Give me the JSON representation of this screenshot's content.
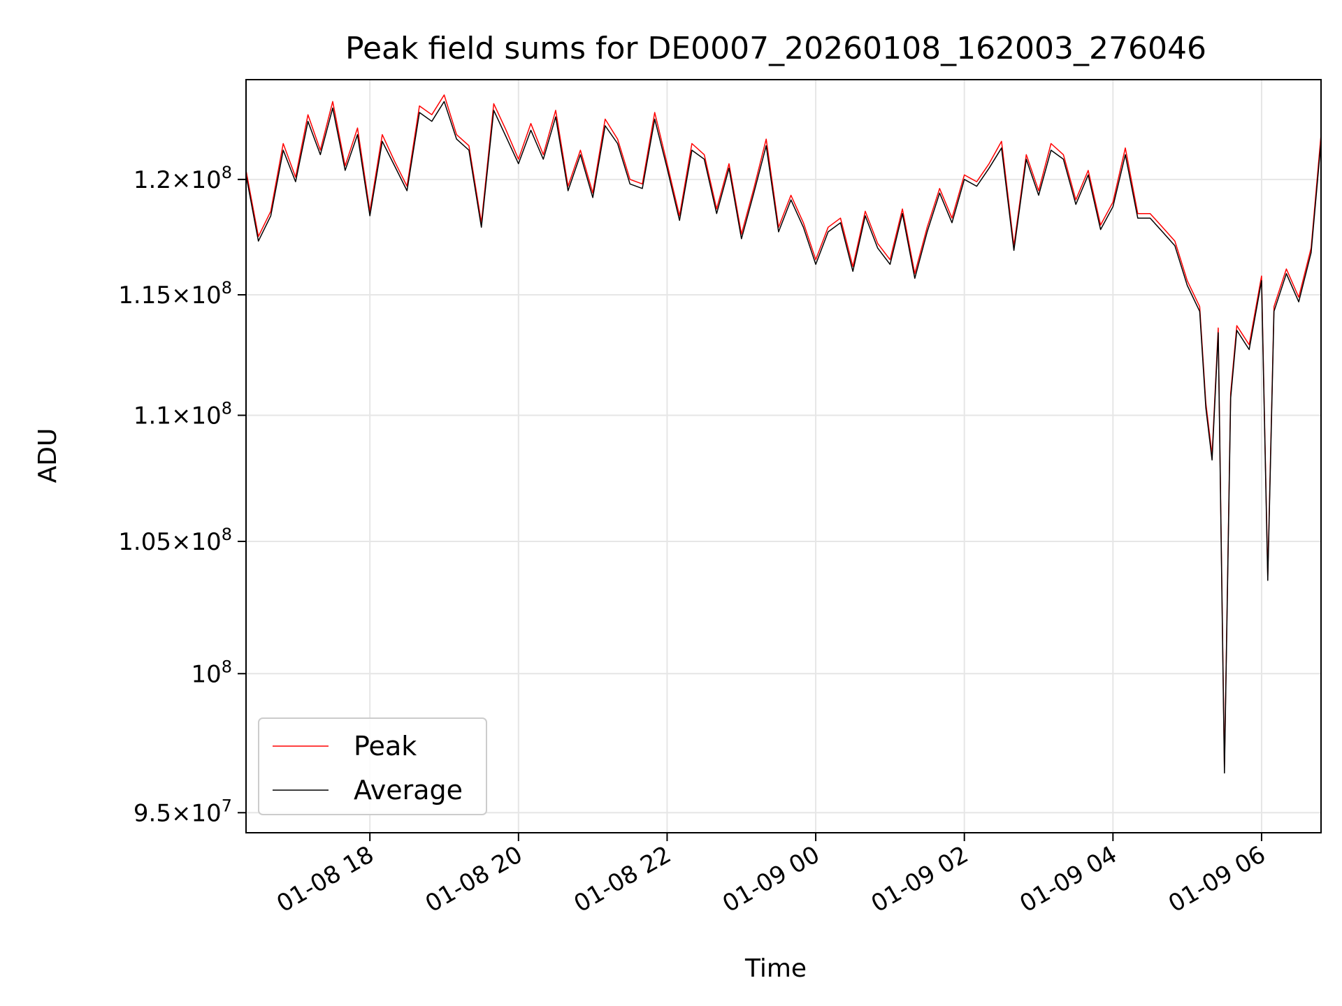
{
  "chart_data": {
    "type": "line",
    "title": "Peak field sums for DE0007_20260108_162003_276046",
    "xlabel": "Time",
    "ylabel": "ADU",
    "yscale": "log",
    "grid": true,
    "legend_placement": "lower left",
    "xlim": [
      "2026-01-08 16:20",
      "2026-01-09 06:48"
    ],
    "ylim": [
      94300000,
      124500000
    ],
    "x_ticks": [
      {
        "value": "2026-01-08 18:00",
        "label": "01-08 18"
      },
      {
        "value": "2026-01-08 20:00",
        "label": "01-08 20"
      },
      {
        "value": "2026-01-08 22:00",
        "label": "01-08 22"
      },
      {
        "value": "2026-01-09 00:00",
        "label": "01-09 00"
      },
      {
        "value": "2026-01-09 02:00",
        "label": "01-09 02"
      },
      {
        "value": "2026-01-09 04:00",
        "label": "01-09 04"
      },
      {
        "value": "2026-01-09 06:00",
        "label": "01-09 06"
      }
    ],
    "y_ticks": [
      {
        "value": 95000000,
        "mantissa": "9.5",
        "exponent": "7"
      },
      {
        "value": 100000000,
        "mantissa": "",
        "exponent": "8"
      },
      {
        "value": 105000000,
        "mantissa": "1.05",
        "exponent": "8"
      },
      {
        "value": 110000000,
        "mantissa": "1.1",
        "exponent": "8"
      },
      {
        "value": 115000000,
        "mantissa": "1.15",
        "exponent": "8"
      },
      {
        "value": 120000000,
        "mantissa": "1.2",
        "exponent": "8"
      }
    ],
    "series": [
      {
        "name": "Peak",
        "color": "#ff0000",
        "x": [
          "2026-01-08 16:20",
          "2026-01-08 16:30",
          "2026-01-08 16:40",
          "2026-01-08 16:50",
          "2026-01-08 17:00",
          "2026-01-08 17:10",
          "2026-01-08 17:20",
          "2026-01-08 17:30",
          "2026-01-08 17:40",
          "2026-01-08 17:50",
          "2026-01-08 18:00",
          "2026-01-08 18:10",
          "2026-01-08 18:20",
          "2026-01-08 18:30",
          "2026-01-08 18:40",
          "2026-01-08 18:50",
          "2026-01-08 19:00",
          "2026-01-08 19:10",
          "2026-01-08 19:20",
          "2026-01-08 19:30",
          "2026-01-08 19:40",
          "2026-01-08 19:50",
          "2026-01-08 20:00",
          "2026-01-08 20:10",
          "2026-01-08 20:20",
          "2026-01-08 20:30",
          "2026-01-08 20:40",
          "2026-01-08 20:50",
          "2026-01-08 21:00",
          "2026-01-08 21:10",
          "2026-01-08 21:20",
          "2026-01-08 21:30",
          "2026-01-08 21:40",
          "2026-01-08 21:50",
          "2026-01-08 22:00",
          "2026-01-08 22:10",
          "2026-01-08 22:20",
          "2026-01-08 22:30",
          "2026-01-08 22:40",
          "2026-01-08 22:50",
          "2026-01-08 23:00",
          "2026-01-08 23:10",
          "2026-01-08 23:20",
          "2026-01-08 23:30",
          "2026-01-08 23:40",
          "2026-01-08 23:50",
          "2026-01-09 00:00",
          "2026-01-09 00:10",
          "2026-01-09 00:20",
          "2026-01-09 00:30",
          "2026-01-09 00:40",
          "2026-01-09 00:50",
          "2026-01-09 01:00",
          "2026-01-09 01:10",
          "2026-01-09 01:20",
          "2026-01-09 01:30",
          "2026-01-09 01:40",
          "2026-01-09 01:50",
          "2026-01-09 02:00",
          "2026-01-09 02:10",
          "2026-01-09 02:20",
          "2026-01-09 02:30",
          "2026-01-09 02:40",
          "2026-01-09 02:50",
          "2026-01-09 03:00",
          "2026-01-09 03:10",
          "2026-01-09 03:20",
          "2026-01-09 03:30",
          "2026-01-09 03:40",
          "2026-01-09 03:50",
          "2026-01-09 04:00",
          "2026-01-09 04:10",
          "2026-01-09 04:20",
          "2026-01-09 04:30",
          "2026-01-09 04:40",
          "2026-01-09 04:50",
          "2026-01-09 05:00",
          "2026-01-09 05:10",
          "2026-01-09 05:15",
          "2026-01-09 05:20",
          "2026-01-09 05:25",
          "2026-01-09 05:30",
          "2026-01-09 05:35",
          "2026-01-09 05:40",
          "2026-01-09 05:50",
          "2026-01-09 06:00",
          "2026-01-09 06:05",
          "2026-01-09 06:10",
          "2026-01-09 06:20",
          "2026-01-09 06:30",
          "2026-01-09 06:40",
          "2026-01-09 06:48"
        ],
        "y": [
          120400000,
          117500000,
          118600000,
          121600000,
          120100000,
          122900000,
          121300000,
          123500000,
          120600000,
          122300000,
          118600000,
          122000000,
          120800000,
          119700000,
          123300000,
          122900000,
          123800000,
          122000000,
          121500000,
          118100000,
          123400000,
          122200000,
          120900000,
          122500000,
          121100000,
          123100000,
          119700000,
          121300000,
          119400000,
          122700000,
          121800000,
          120000000,
          119800000,
          123000000,
          120700000,
          118400000,
          121600000,
          121100000,
          118700000,
          120700000,
          117600000,
          119600000,
          121800000,
          117900000,
          119300000,
          118100000,
          116500000,
          117900000,
          118300000,
          116200000,
          118600000,
          117200000,
          116500000,
          118700000,
          115900000,
          117900000,
          119600000,
          118300000,
          120200000,
          119900000,
          120700000,
          121700000,
          117100000,
          121100000,
          119500000,
          121600000,
          121100000,
          119100000,
          120400000,
          118000000,
          119000000,
          121400000,
          118500000,
          118500000,
          117900000,
          117300000,
          115600000,
          114500000,
          110500000,
          108400000,
          113600000,
          96600000,
          110900000,
          113700000,
          112900000,
          115800000,
          103700000,
          114500000,
          116100000,
          114900000,
          117000000,
          122000000
        ]
      },
      {
        "name": "Average",
        "color": "#000000",
        "x": [
          "2026-01-08 16:20",
          "2026-01-08 16:30",
          "2026-01-08 16:40",
          "2026-01-08 16:50",
          "2026-01-08 17:00",
          "2026-01-08 17:10",
          "2026-01-08 17:20",
          "2026-01-08 17:30",
          "2026-01-08 17:40",
          "2026-01-08 17:50",
          "2026-01-08 18:00",
          "2026-01-08 18:10",
          "2026-01-08 18:20",
          "2026-01-08 18:30",
          "2026-01-08 18:40",
          "2026-01-08 18:50",
          "2026-01-08 19:00",
          "2026-01-08 19:10",
          "2026-01-08 19:20",
          "2026-01-08 19:30",
          "2026-01-08 19:40",
          "2026-01-08 19:50",
          "2026-01-08 20:00",
          "2026-01-08 20:10",
          "2026-01-08 20:20",
          "2026-01-08 20:30",
          "2026-01-08 20:40",
          "2026-01-08 20:50",
          "2026-01-08 21:00",
          "2026-01-08 21:10",
          "2026-01-08 21:20",
          "2026-01-08 21:30",
          "2026-01-08 21:40",
          "2026-01-08 21:50",
          "2026-01-08 22:00",
          "2026-01-08 22:10",
          "2026-01-08 22:20",
          "2026-01-08 22:30",
          "2026-01-08 22:40",
          "2026-01-08 22:50",
          "2026-01-08 23:00",
          "2026-01-08 23:10",
          "2026-01-08 23:20",
          "2026-01-08 23:30",
          "2026-01-08 23:40",
          "2026-01-08 23:50",
          "2026-01-09 00:00",
          "2026-01-09 00:10",
          "2026-01-09 00:20",
          "2026-01-09 00:30",
          "2026-01-09 00:40",
          "2026-01-09 00:50",
          "2026-01-09 01:00",
          "2026-01-09 01:10",
          "2026-01-09 01:20",
          "2026-01-09 01:30",
          "2026-01-09 01:40",
          "2026-01-09 01:50",
          "2026-01-09 02:00",
          "2026-01-09 02:10",
          "2026-01-09 02:20",
          "2026-01-09 02:30",
          "2026-01-09 02:40",
          "2026-01-09 02:50",
          "2026-01-09 03:00",
          "2026-01-09 03:10",
          "2026-01-09 03:20",
          "2026-01-09 03:30",
          "2026-01-09 03:40",
          "2026-01-09 03:50",
          "2026-01-09 04:00",
          "2026-01-09 04:10",
          "2026-01-09 04:20",
          "2026-01-09 04:30",
          "2026-01-09 04:40",
          "2026-01-09 04:50",
          "2026-01-09 05:00",
          "2026-01-09 05:10",
          "2026-01-09 05:15",
          "2026-01-09 05:20",
          "2026-01-09 05:25",
          "2026-01-09 05:30",
          "2026-01-09 05:35",
          "2026-01-09 05:40",
          "2026-01-09 05:50",
          "2026-01-09 06:00",
          "2026-01-09 06:05",
          "2026-01-09 06:10",
          "2026-01-09 06:20",
          "2026-01-09 06:30",
          "2026-01-09 06:40",
          "2026-01-09 06:48"
        ],
        "y": [
          120200000,
          117300000,
          118400000,
          121300000,
          119900000,
          122600000,
          121100000,
          123200000,
          120400000,
          122000000,
          118400000,
          121700000,
          120600000,
          119500000,
          123000000,
          122600000,
          123500000,
          121800000,
          121300000,
          117900000,
          123100000,
          121900000,
          120700000,
          122200000,
          120900000,
          122800000,
          119500000,
          121100000,
          119200000,
          122400000,
          121600000,
          119800000,
          119600000,
          122700000,
          120500000,
          118200000,
          121300000,
          120900000,
          118500000,
          120500000,
          117400000,
          119400000,
          121500000,
          117700000,
          119100000,
          117900000,
          116300000,
          117700000,
          118100000,
          116000000,
          118400000,
          117000000,
          116300000,
          118500000,
          115700000,
          117700000,
          119400000,
          118100000,
          120000000,
          119700000,
          120500000,
          121400000,
          116900000,
          120900000,
          119300000,
          121300000,
          120900000,
          118900000,
          120200000,
          117800000,
          118800000,
          121100000,
          118300000,
          118300000,
          117700000,
          117100000,
          115400000,
          114300000,
          110300000,
          108200000,
          113400000,
          96400000,
          110700000,
          113500000,
          112700000,
          115600000,
          103500000,
          114300000,
          115900000,
          114700000,
          116800000,
          121700000
        ]
      }
    ]
  }
}
